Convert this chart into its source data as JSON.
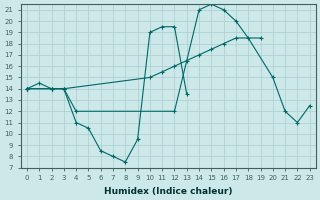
{
  "xlabel": "Humidex (Indice chaleur)",
  "ylim": [
    7,
    21.5
  ],
  "xlim": [
    -0.5,
    23.5
  ],
  "yticks": [
    7,
    8,
    9,
    10,
    11,
    12,
    13,
    14,
    15,
    16,
    17,
    18,
    19,
    20,
    21
  ],
  "x_ticks": [
    0,
    1,
    2,
    3,
    4,
    5,
    6,
    7,
    8,
    9,
    10,
    11,
    12,
    13,
    14,
    15,
    16,
    17,
    18,
    19,
    20,
    21,
    22,
    23
  ],
  "bg_color": "#cce8e8",
  "grid_color": "#aacece",
  "line_color": "#006868",
  "series": [
    {
      "x": [
        0,
        1,
        2,
        3,
        4,
        5,
        6,
        7,
        8,
        9,
        10,
        11,
        12,
        13
      ],
      "y": [
        14,
        14.5,
        14,
        14,
        11,
        10.5,
        8.5,
        8,
        7.5,
        9.5,
        19,
        19.5,
        19.5,
        13.5
      ]
    },
    {
      "x": [
        0,
        2,
        3,
        10,
        11,
        12,
        13,
        14,
        15,
        16,
        17,
        19
      ],
      "y": [
        14,
        14,
        14,
        15,
        15.5,
        16,
        16.5,
        17,
        17.5,
        18,
        18.5,
        18.5
      ]
    },
    {
      "x": [
        0,
        2,
        3,
        4,
        12,
        14,
        15,
        16,
        17,
        18,
        20,
        21,
        22,
        23
      ],
      "y": [
        14,
        14,
        14,
        12,
        12,
        21,
        21.5,
        21,
        20,
        18.5,
        15,
        12,
        11,
        12.5
      ]
    }
  ],
  "figsize": [
    3.2,
    2.0
  ],
  "dpi": 100
}
